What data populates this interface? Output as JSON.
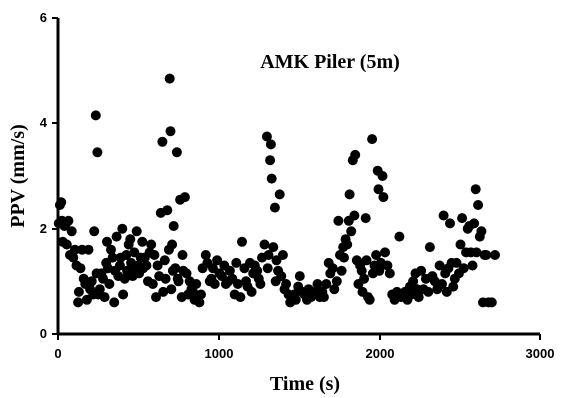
{
  "chart_data": {
    "type": "scatter",
    "title": "AMK Piler (5m)",
    "xlabel": "Time (s)",
    "ylabel": "PPV (mm/s)",
    "xlim": [
      0,
      3000
    ],
    "ylim": [
      0,
      6
    ],
    "xticks": [
      "0",
      "1000",
      "2000",
      "3000"
    ],
    "yticks": [
      "0",
      "2",
      "4",
      "6"
    ],
    "grid": false,
    "point_color": "#000000",
    "series": [
      {
        "points": [
          [
            5,
            2.1
          ],
          [
            12,
            2.45
          ],
          [
            20,
            2.5
          ],
          [
            25,
            2.15
          ],
          [
            30,
            1.75
          ],
          [
            40,
            2.05
          ],
          [
            50,
            2.1
          ],
          [
            55,
            1.7
          ],
          [
            65,
            2.15
          ],
          [
            75,
            1.5
          ],
          [
            85,
            1.95
          ],
          [
            95,
            1.45
          ],
          [
            105,
            1.6
          ],
          [
            115,
            1.3
          ],
          [
            125,
            0.6
          ],
          [
            130,
            0.8
          ],
          [
            140,
            1.25
          ],
          [
            150,
            1.6
          ],
          [
            160,
            1.05
          ],
          [
            170,
            0.95
          ],
          [
            180,
            0.65
          ],
          [
            190,
            1.6
          ],
          [
            200,
            0.85
          ],
          [
            210,
            1.0
          ],
          [
            220,
            0.75
          ],
          [
            225,
            1.95
          ],
          [
            235,
            4.15
          ],
          [
            240,
            1.15
          ],
          [
            245,
            3.45
          ],
          [
            250,
            0.75
          ],
          [
            260,
            0.85
          ],
          [
            270,
            1.15
          ],
          [
            280,
            1.05
          ],
          [
            290,
            0.7
          ],
          [
            300,
            1.35
          ],
          [
            305,
            1.75
          ],
          [
            310,
            1.25
          ],
          [
            320,
            0.95
          ],
          [
            330,
            1.6
          ],
          [
            340,
            1.45
          ],
          [
            350,
            0.6
          ],
          [
            355,
            1.2
          ],
          [
            365,
            1.85
          ],
          [
            375,
            1.1
          ],
          [
            385,
            1.3
          ],
          [
            390,
            1.45
          ],
          [
            400,
            2.0
          ],
          [
            405,
            0.75
          ],
          [
            415,
            1.05
          ],
          [
            425,
            1.5
          ],
          [
            430,
            1.2
          ],
          [
            440,
            1.7
          ],
          [
            450,
            1.8
          ],
          [
            455,
            1.35
          ],
          [
            465,
            1.1
          ],
          [
            475,
            1.55
          ],
          [
            480,
            1.2
          ],
          [
            490,
            1.95
          ],
          [
            500,
            1.3
          ],
          [
            505,
            1.15
          ],
          [
            515,
            1.45
          ],
          [
            525,
            1.75
          ],
          [
            530,
            1.25
          ],
          [
            540,
            1.45
          ],
          [
            550,
            1.3
          ],
          [
            560,
            1.0
          ],
          [
            570,
            1.55
          ],
          [
            580,
            1.7
          ],
          [
            590,
            0.95
          ],
          [
            600,
            1.5
          ],
          [
            610,
            0.7
          ],
          [
            620,
            1.3
          ],
          [
            630,
            1.1
          ],
          [
            640,
            2.3
          ],
          [
            650,
            3.65
          ],
          [
            655,
            0.8
          ],
          [
            665,
            1.4
          ],
          [
            670,
            1.05
          ],
          [
            680,
            2.35
          ],
          [
            690,
            1.6
          ],
          [
            695,
            4.85
          ],
          [
            700,
            3.85
          ],
          [
            705,
            0.85
          ],
          [
            710,
            1.7
          ],
          [
            715,
            1.2
          ],
          [
            720,
            2.05
          ],
          [
            730,
            1.25
          ],
          [
            740,
            3.45
          ],
          [
            745,
            1.05
          ],
          [
            750,
            1.0
          ],
          [
            760,
            2.55
          ],
          [
            770,
            0.7
          ],
          [
            775,
            1.5
          ],
          [
            780,
            1.2
          ],
          [
            790,
            2.6
          ],
          [
            800,
            1.15
          ],
          [
            810,
            0.75
          ],
          [
            820,
            1.0
          ],
          [
            830,
            0.85
          ],
          [
            840,
            0.8
          ],
          [
            850,
            0.65
          ],
          [
            860,
            0.95
          ],
          [
            870,
            0.7
          ],
          [
            880,
            0.6
          ],
          [
            890,
            0.75
          ],
          [
            900,
            1.25
          ],
          [
            920,
            1.5
          ],
          [
            930,
            1.35
          ],
          [
            945,
            1.0
          ],
          [
            955,
            1.05
          ],
          [
            965,
            1.25
          ],
          [
            975,
            0.95
          ],
          [
            990,
            1.4
          ],
          [
            1005,
            1.15
          ],
          [
            1020,
            1.1
          ],
          [
            1035,
            1.3
          ],
          [
            1045,
            0.95
          ],
          [
            1060,
            1.0
          ],
          [
            1070,
            1.2
          ],
          [
            1085,
            1.05
          ],
          [
            1100,
            0.75
          ],
          [
            1110,
            1.35
          ],
          [
            1120,
            0.95
          ],
          [
            1135,
            0.7
          ],
          [
            1145,
            1.75
          ],
          [
            1160,
            1.25
          ],
          [
            1170,
            1.0
          ],
          [
            1180,
            0.9
          ],
          [
            1195,
            1.35
          ],
          [
            1205,
            0.8
          ],
          [
            1215,
            1.15
          ],
          [
            1225,
            1.3
          ],
          [
            1240,
            1.2
          ],
          [
            1250,
            1.05
          ],
          [
            1260,
            0.95
          ],
          [
            1270,
            1.45
          ],
          [
            1285,
            1.7
          ],
          [
            1300,
            3.75
          ],
          [
            1305,
            1.25
          ],
          [
            1310,
            1.5
          ],
          [
            1320,
            3.3
          ],
          [
            1325,
            3.6
          ],
          [
            1330,
            2.95
          ],
          [
            1340,
            1.65
          ],
          [
            1350,
            2.4
          ],
          [
            1355,
            1.0
          ],
          [
            1360,
            1.4
          ],
          [
            1370,
            1.2
          ],
          [
            1380,
            2.65
          ],
          [
            1390,
            1.1
          ],
          [
            1400,
            1.5
          ],
          [
            1410,
            0.85
          ],
          [
            1420,
            0.95
          ],
          [
            1435,
            0.75
          ],
          [
            1445,
            0.6
          ],
          [
            1455,
            0.7
          ],
          [
            1470,
            0.75
          ],
          [
            1480,
            0.65
          ],
          [
            1495,
            0.9
          ],
          [
            1505,
            1.1
          ],
          [
            1520,
            0.8
          ],
          [
            1535,
            0.75
          ],
          [
            1550,
            0.65
          ],
          [
            1560,
            0.85
          ],
          [
            1575,
            0.7
          ],
          [
            1585,
            0.75
          ],
          [
            1600,
            0.8
          ],
          [
            1615,
            0.95
          ],
          [
            1630,
            0.7
          ],
          [
            1645,
            0.8
          ],
          [
            1655,
            0.7
          ],
          [
            1670,
            0.95
          ],
          [
            1685,
            1.35
          ],
          [
            1695,
            1.15
          ],
          [
            1710,
            1.25
          ],
          [
            1720,
            0.85
          ],
          [
            1735,
            1.0
          ],
          [
            1745,
            2.15
          ],
          [
            1755,
            1.5
          ],
          [
            1765,
            1.2
          ],
          [
            1775,
            1.65
          ],
          [
            1780,
            1.45
          ],
          [
            1790,
            1.8
          ],
          [
            1800,
            1.7
          ],
          [
            1810,
            2.15
          ],
          [
            1815,
            2.65
          ],
          [
            1825,
            1.95
          ],
          [
            1835,
            3.3
          ],
          [
            1845,
            2.25
          ],
          [
            1850,
            3.4
          ],
          [
            1860,
            1.4
          ],
          [
            1870,
            0.95
          ],
          [
            1880,
            1.3
          ],
          [
            1890,
            1.2
          ],
          [
            1895,
            0.8
          ],
          [
            1905,
            1.05
          ],
          [
            1915,
            2.2
          ],
          [
            1920,
            1.4
          ],
          [
            1930,
            0.7
          ],
          [
            1940,
            0.65
          ],
          [
            1955,
            3.7
          ],
          [
            1960,
            1.15
          ],
          [
            1970,
            1.3
          ],
          [
            1980,
            1.5
          ],
          [
            1990,
            3.1
          ],
          [
            1995,
            2.75
          ],
          [
            2000,
            1.2
          ],
          [
            2010,
            1.35
          ],
          [
            2020,
            3.0
          ],
          [
            2025,
            2.6
          ],
          [
            2035,
            1.55
          ],
          [
            2050,
            1.3
          ],
          [
            2065,
            1.15
          ],
          [
            2080,
            0.75
          ],
          [
            2095,
            0.65
          ],
          [
            2110,
            0.8
          ],
          [
            2125,
            1.85
          ],
          [
            2135,
            0.7
          ],
          [
            2145,
            0.75
          ],
          [
            2160,
            0.8
          ],
          [
            2175,
            0.65
          ],
          [
            2190,
            0.9
          ],
          [
            2200,
            0.75
          ],
          [
            2210,
            1.0
          ],
          [
            2225,
            1.15
          ],
          [
            2235,
            0.85
          ],
          [
            2245,
            0.7
          ],
          [
            2260,
            1.2
          ],
          [
            2275,
            0.85
          ],
          [
            2290,
            1.05
          ],
          [
            2305,
            0.8
          ],
          [
            2315,
            1.65
          ],
          [
            2330,
            1.1
          ],
          [
            2345,
            1.0
          ],
          [
            2360,
            0.85
          ],
          [
            2375,
            1.3
          ],
          [
            2390,
            0.95
          ],
          [
            2400,
            2.25
          ],
          [
            2410,
            1.15
          ],
          [
            2420,
            0.8
          ],
          [
            2430,
            1.25
          ],
          [
            2440,
            2.1
          ],
          [
            2450,
            1.35
          ],
          [
            2460,
            0.9
          ],
          [
            2470,
            1.05
          ],
          [
            2480,
            1.35
          ],
          [
            2495,
            1.15
          ],
          [
            2505,
            1.7
          ],
          [
            2515,
            2.2
          ],
          [
            2525,
            1.25
          ],
          [
            2540,
            1.55
          ],
          [
            2550,
            2.0
          ],
          [
            2560,
            2.05
          ],
          [
            2570,
            1.55
          ],
          [
            2580,
            1.3
          ],
          [
            2590,
            2.1
          ],
          [
            2600,
            2.75
          ],
          [
            2605,
            1.55
          ],
          [
            2615,
            2.45
          ],
          [
            2625,
            1.85
          ],
          [
            2635,
            1.95
          ],
          [
            2645,
            0.6
          ],
          [
            2655,
            1.5
          ],
          [
            2665,
            1.5
          ],
          [
            2680,
            0.6
          ],
          [
            2700,
            0.6
          ],
          [
            2720,
            1.5
          ]
        ]
      }
    ]
  }
}
